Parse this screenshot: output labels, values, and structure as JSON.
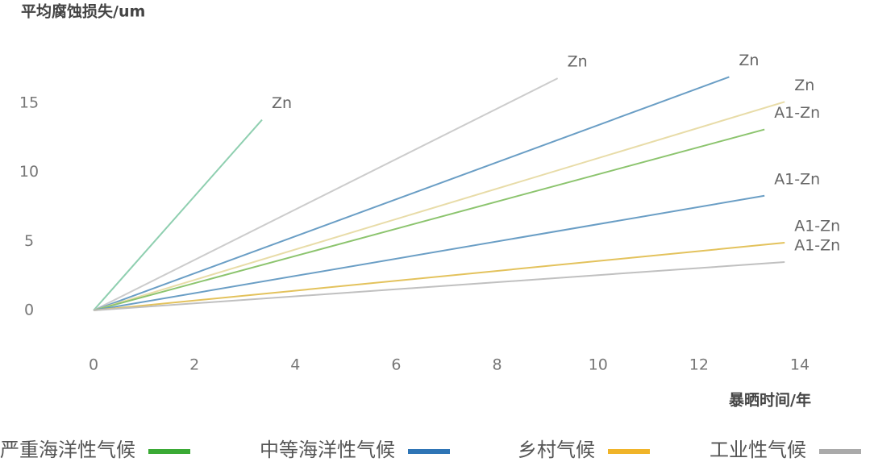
{
  "chart_data": {
    "type": "line",
    "y_label": "平均腐蚀损失/um",
    "x_label": "暴晒时间/年",
    "xlim": [
      0,
      14
    ],
    "ylim": [
      0,
      15
    ],
    "xticks": [
      0,
      2,
      4,
      6,
      8,
      10,
      12,
      14
    ],
    "yticks": [
      0,
      5,
      10,
      15
    ],
    "series": [
      {
        "name": "Zn",
        "color": "#8fcfb0",
        "x": [
          0,
          3.34
        ],
        "values": [
          0,
          13.8
        ]
      },
      {
        "name": "Zn",
        "color": "#cccccc",
        "x": [
          0,
          9.2
        ],
        "values": [
          0,
          16.8
        ]
      },
      {
        "name": "Zn",
        "color": "#6a9ec5",
        "x": [
          0,
          12.6
        ],
        "values": [
          0,
          16.9
        ]
      },
      {
        "name": "Zn",
        "color": "#e8dca8",
        "x": [
          0,
          13.7
        ],
        "values": [
          0,
          15.1
        ]
      },
      {
        "name": "A1-Zn",
        "color": "#8cc46e",
        "x": [
          0,
          13.3
        ],
        "values": [
          0,
          13.1
        ]
      },
      {
        "name": "A1-Zn",
        "color": "#6a9ec5",
        "x": [
          0,
          13.3
        ],
        "values": [
          0,
          8.3
        ]
      },
      {
        "name": "A1-Zn",
        "color": "#e3c25c",
        "x": [
          0,
          13.7
        ],
        "values": [
          0,
          4.9
        ]
      },
      {
        "name": "A1-Zn",
        "color": "#c0c0c0",
        "x": [
          0,
          13.7
        ],
        "values": [
          0,
          3.5
        ]
      }
    ],
    "legend": [
      {
        "name": "严重海洋性气候",
        "color": "#3aaa35"
      },
      {
        "name": "中等海洋性气候",
        "color": "#2e75b6"
      },
      {
        "name": "乡村气候",
        "color": "#f0b429"
      },
      {
        "name": "工业性气候",
        "color": "#aaaaaa"
      }
    ]
  }
}
